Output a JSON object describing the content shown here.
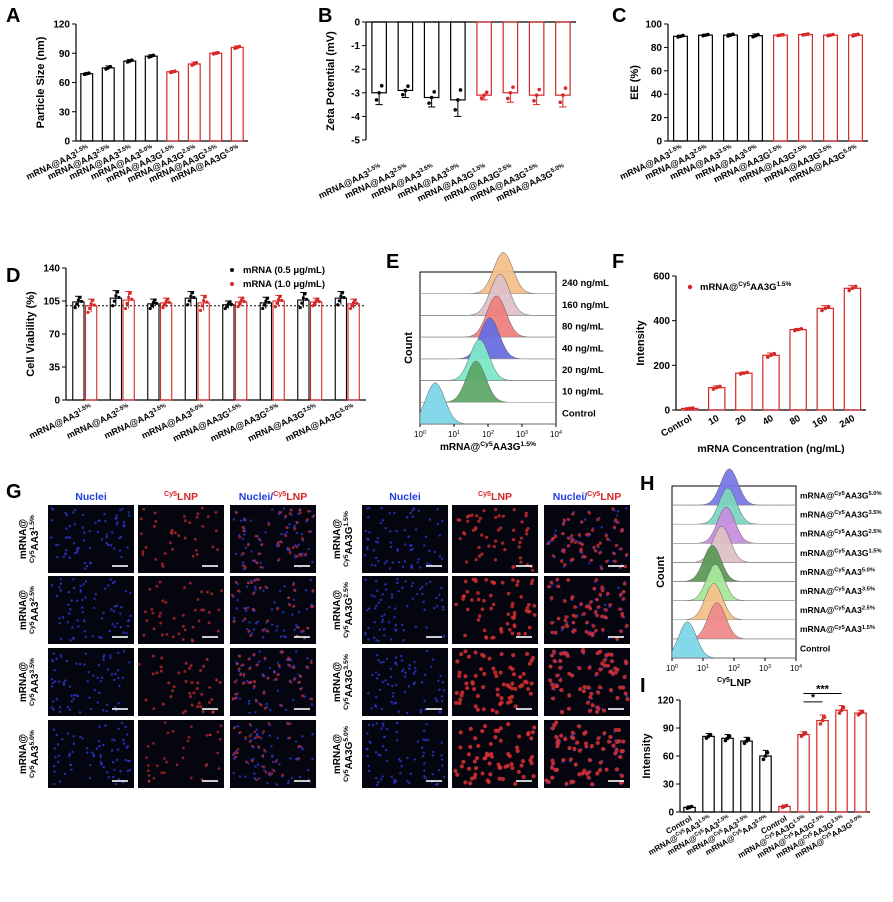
{
  "colors": {
    "black": "#000000",
    "red": "#d62728",
    "blue": "#1f3de0",
    "flow": [
      "#7fd6e8",
      "#5ea86a",
      "#7ee8c8",
      "#6a6de0",
      "#f08080",
      "#e0c0c8",
      "#f5c08a"
    ]
  },
  "chart_data": [
    {
      "panel": "A",
      "type": "bar",
      "ylabel": "Particle Size (nm)",
      "ylim": [
        0,
        120
      ],
      "yticks": [
        "0",
        "30",
        "60",
        "90",
        "120"
      ],
      "categories": [
        {
          "label": "mRNA@AA3",
          "sup": "1.5%"
        },
        {
          "label": "mRNA@AA3",
          "sup": "2.5%"
        },
        {
          "label": "mRNA@AA3",
          "sup": "3.5%"
        },
        {
          "label": "mRNA@AA3",
          "sup": "5.0%"
        },
        {
          "label": "mRNA@AA3G",
          "sup": "1.5%"
        },
        {
          "label": "mRNA@AA3G",
          "sup": "2.5%"
        },
        {
          "label": "mRNA@AA3G",
          "sup": "3.5%"
        },
        {
          "label": "mRNA@AA3G",
          "sup": "5.0%"
        }
      ],
      "values": [
        69,
        75,
        82,
        87,
        71,
        79,
        90,
        96
      ],
      "errors": [
        1,
        2,
        1.5,
        1.5,
        1,
        2,
        1,
        1.5
      ],
      "colors": [
        "black",
        "black",
        "black",
        "black",
        "red",
        "red",
        "red",
        "red"
      ]
    },
    {
      "panel": "B",
      "type": "bar",
      "ylabel": "Zeta Potential (mV)",
      "ylim": [
        -5,
        0
      ],
      "yticks": [
        "0",
        "-1",
        "-2",
        "-3",
        "-4",
        "-5"
      ],
      "categories": [
        {
          "label": "mRNA@AA3",
          "sup": "1.5%"
        },
        {
          "label": "mRNA@AA3",
          "sup": "2.5%"
        },
        {
          "label": "mRNA@AA3",
          "sup": "3.5%"
        },
        {
          "label": "mRNA@AA3",
          "sup": "5.0%"
        },
        {
          "label": "mRNA@AA3G",
          "sup": "1.5%"
        },
        {
          "label": "mRNA@AA3G",
          "sup": "2.5%"
        },
        {
          "label": "mRNA@AA3G",
          "sup": "3.5%"
        },
        {
          "label": "mRNA@AA3G",
          "sup": "5.0%"
        }
      ],
      "values": [
        -3.0,
        -2.9,
        -3.2,
        -3.3,
        -3.1,
        -3.0,
        -3.1,
        -3.1
      ],
      "errors": [
        0.5,
        0.3,
        0.4,
        0.7,
        0.2,
        0.4,
        0.4,
        0.5
      ],
      "colors": [
        "black",
        "black",
        "black",
        "black",
        "red",
        "red",
        "red",
        "red"
      ]
    },
    {
      "panel": "C",
      "type": "bar",
      "ylabel": "EE (%)",
      "ylim": [
        0,
        100
      ],
      "yticks": [
        "0",
        "20",
        "40",
        "60",
        "80",
        "100"
      ],
      "categories": [
        {
          "label": "mRNA@AA3",
          "sup": "1.5%"
        },
        {
          "label": "mRNA@AA3",
          "sup": "2.5%"
        },
        {
          "label": "mRNA@AA3",
          "sup": "3.5%"
        },
        {
          "label": "mRNA@AA3",
          "sup": "5.0%"
        },
        {
          "label": "mRNA@AA3G",
          "sup": "1.5%"
        },
        {
          "label": "mRNA@AA3G",
          "sup": "2.5%"
        },
        {
          "label": "mRNA@AA3G",
          "sup": "3.5%"
        },
        {
          "label": "mRNA@AA3G",
          "sup": "5.0%"
        }
      ],
      "values": [
        89.5,
        90.5,
        90.5,
        90,
        90.5,
        91,
        90.5,
        90.5
      ],
      "errors": [
        1,
        0.8,
        1.2,
        1.5,
        0.6,
        0.6,
        0.8,
        1.2
      ],
      "colors": [
        "black",
        "black",
        "black",
        "black",
        "red",
        "red",
        "red",
        "red"
      ]
    },
    {
      "panel": "D",
      "type": "bar",
      "ylabel": "Cell Viability (%)",
      "ylim": [
        0,
        140
      ],
      "yticks": [
        "0",
        "35",
        "70",
        "105",
        "140"
      ],
      "legend": [
        {
          "name": "mRNA (0.5 μg/mL)",
          "color": "black"
        },
        {
          "name": "mRNA (1.0 μg/mL)",
          "color": "red"
        }
      ],
      "categories": [
        {
          "label": "mRNA@AA3",
          "sup": "1.5%"
        },
        {
          "label": "mRNA@AA3",
          "sup": "2.5%"
        },
        {
          "label": "mRNA@AA3",
          "sup": "3.5%"
        },
        {
          "label": "mRNA@AA3",
          "sup": "5.0%"
        },
        {
          "label": "mRNA@AA3G",
          "sup": "1.5%"
        },
        {
          "label": "mRNA@AA3G",
          "sup": "2.5%"
        },
        {
          "label": "mRNA@AA3G",
          "sup": "3.5%"
        },
        {
          "label": "mRNA@AA3G",
          "sup": "5.0%"
        }
      ],
      "series": [
        {
          "name": "mRNA (0.5 μg/mL)",
          "values": [
            104,
            108,
            102,
            108,
            101,
            103,
            106,
            108
          ],
          "errors": [
            6,
            8,
            5,
            7,
            4,
            6,
            8,
            7
          ]
        },
        {
          "name": "mRNA (1.0 μg/mL)",
          "values": [
            100,
            106,
            103,
            103,
            104,
            105,
            104,
            102
          ],
          "errors": [
            7,
            9,
            5,
            8,
            5,
            6,
            4,
            5
          ]
        }
      ],
      "reference_line": 100
    },
    {
      "panel": "E",
      "type": "histogram-stack",
      "xlabel": "mRNA@",
      "xlabel_sup": "Cy5",
      "xlabel_tail": "AA3G",
      "xlabel_sup2": "1.5%",
      "ylabel": "Count",
      "xticks": [
        {
          "base": "10",
          "exp": "0"
        },
        {
          "base": "10",
          "exp": "1"
        },
        {
          "base": "10",
          "exp": "2"
        },
        {
          "base": "10",
          "exp": "3"
        },
        {
          "base": "10",
          "exp": "4"
        }
      ],
      "tracks": [
        {
          "name": "Control",
          "peak": 0.45
        },
        {
          "name": "10 ng/mL",
          "peak": 1.65
        },
        {
          "name": "20 ng/mL",
          "peak": 1.75
        },
        {
          "name": "40 ng/mL",
          "peak": 2.05
        },
        {
          "name": "80 ng/mL",
          "peak": 2.25
        },
        {
          "name": "160 ng/mL",
          "peak": 2.35
        },
        {
          "name": "240 ng/mL",
          "peak": 2.45
        }
      ]
    },
    {
      "panel": "F",
      "type": "bar",
      "ylabel": "Intensity",
      "xlabel": "mRNA Concentration (ng/mL)",
      "legend": {
        "text": "mRNA@",
        "sup": "Cy5",
        "tail": "AA3G",
        "sup2": "1.5%"
      },
      "ylim": [
        0,
        600
      ],
      "yticks": [
        "0",
        "200",
        "400",
        "600"
      ],
      "categories": [
        "Control",
        "10",
        "20",
        "40",
        "80",
        "160",
        "240"
      ],
      "values": [
        7,
        100,
        165,
        245,
        360,
        455,
        545
      ],
      "errors": [
        3,
        8,
        5,
        10,
        5,
        12,
        12
      ]
    },
    {
      "panel": "H",
      "type": "histogram-stack",
      "xlabel": "LNP",
      "xlabel_sup": "Cy5",
      "ylabel": "Count",
      "xticks": [
        {
          "base": "10",
          "exp": "0"
        },
        {
          "base": "10",
          "exp": "1"
        },
        {
          "base": "10",
          "exp": "2"
        },
        {
          "base": "10",
          "exp": "3"
        },
        {
          "base": "10",
          "exp": "4"
        }
      ],
      "tracks": [
        {
          "name": "Control",
          "pre": "",
          "sup": "",
          "tail": "",
          "sup2": "",
          "peak": 0.5
        },
        {
          "name": "mRNA@",
          "sup": "Cy5",
          "tail": "AA3",
          "sup2": "1.5%",
          "peak": 1.45
        },
        {
          "name": "mRNA@",
          "sup": "Cy5",
          "tail": "AA3",
          "sup2": "2.5%",
          "peak": 1.35
        },
        {
          "name": "mRNA@",
          "sup": "Cy5",
          "tail": "AA3",
          "sup2": "3.5%",
          "peak": 1.4
        },
        {
          "name": "mRNA@",
          "sup": "Cy5",
          "tail": "AA3",
          "sup2": "5.0%",
          "peak": 1.3
        },
        {
          "name": "mRNA@",
          "sup": "Cy5",
          "tail": "AA3G",
          "sup2": "1.5%",
          "peak": 1.6
        },
        {
          "name": "mRNA@",
          "sup": "Cy5",
          "tail": "AA3G",
          "sup2": "2.5%",
          "peak": 1.75
        },
        {
          "name": "mRNA@",
          "sup": "Cy5",
          "tail": "AA3G",
          "sup2": "3.5%",
          "peak": 1.8
        },
        {
          "name": "mRNA@",
          "sup": "Cy5",
          "tail": "AA3G",
          "sup2": "5.0%",
          "peak": 1.85
        }
      ]
    },
    {
      "panel": "I",
      "type": "bar",
      "ylabel": "Intensity",
      "ylim": [
        0,
        120
      ],
      "yticks": [
        "0",
        "30",
        "60",
        "90",
        "120"
      ],
      "categories": [
        {
          "label": "Control",
          "sup": "",
          "tail": "",
          "sup2": ""
        },
        {
          "label": "mRNA@",
          "sup": "Cy5",
          "tail": "AA3",
          "sup2": "1.5%"
        },
        {
          "label": "mRNA@",
          "sup": "Cy5",
          "tail": "AA3",
          "sup2": "2.5%"
        },
        {
          "label": "mRNA@",
          "sup": "Cy5",
          "tail": "AA3",
          "sup2": "3.5%"
        },
        {
          "label": "mRNA@",
          "sup": "Cy5",
          "tail": "AA3",
          "sup2": "5.0%"
        },
        {
          "label": "Control",
          "sup": "",
          "tail": "",
          "sup2": ""
        },
        {
          "label": "mRNA@",
          "sup": "Cy5",
          "tail": "AA3G",
          "sup2": "1.5%"
        },
        {
          "label": "mRNA@",
          "sup": "Cy5",
          "tail": "AA3G",
          "sup2": "2.5%"
        },
        {
          "label": "mRNA@",
          "sup": "Cy5",
          "tail": "AA3G",
          "sup2": "3.5%"
        },
        {
          "label": "mRNA@",
          "sup": "Cy5",
          "tail": "AA3G",
          "sup2": "5.0%"
        }
      ],
      "values": [
        5,
        81,
        79,
        76,
        60,
        6,
        83,
        98,
        109,
        106
      ],
      "errors": [
        1.5,
        3,
        4,
        4,
        6,
        1.5,
        3,
        6,
        5,
        3
      ],
      "colors": [
        "black",
        "black",
        "black",
        "black",
        "black",
        "red",
        "red",
        "red",
        "red",
        "red"
      ],
      "significance": [
        {
          "text": "*"
        },
        {
          "text": "***"
        }
      ]
    }
  ],
  "panel_g": {
    "letter": "G",
    "column_headers": [
      {
        "text": "Nuclei",
        "sup": "",
        "tail": ""
      },
      {
        "text": "",
        "sup": "Cy5",
        "tail": "LNP"
      },
      {
        "text": "Nuclei/",
        "sup": "Cy5",
        "tail": "LNP"
      }
    ],
    "left_rows": [
      {
        "line1": "mRNA@",
        "line2": "Cy5",
        "line2b": "AA3",
        "sup": "1.5%"
      },
      {
        "line1": "mRNA@",
        "line2": "Cy5",
        "line2b": "AA3",
        "sup": "2.5%"
      },
      {
        "line1": "mRNA@",
        "line2": "Cy5",
        "line2b": "AA3",
        "sup": "3.5%"
      },
      {
        "line1": "mRNA@",
        "line2": "Cy5",
        "line2b": "AA3",
        "sup": "5.0%"
      }
    ],
    "right_rows": [
      {
        "line1": "mRNA@",
        "line2": "Cy5",
        "line2b": "AA3G",
        "sup": "1.5%"
      },
      {
        "line1": "mRNA@",
        "line2": "Cy5",
        "line2b": "AA3G",
        "sup": "2.5%"
      },
      {
        "line1": "mRNA@",
        "line2": "Cy5",
        "line2b": "AA3G",
        "sup": "3.5%"
      },
      {
        "line1": "mRNA@",
        "line2": "Cy5",
        "line2b": "AA3G",
        "sup": "5.0%"
      }
    ],
    "red_intensity_left": [
      0.35,
      0.35,
      0.4,
      0.3
    ],
    "red_intensity_right": [
      0.55,
      0.7,
      0.85,
      0.9
    ]
  }
}
